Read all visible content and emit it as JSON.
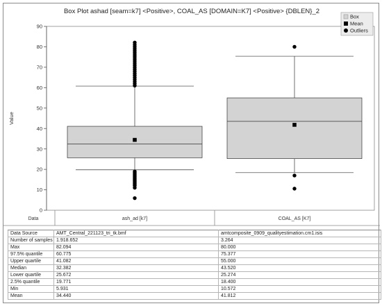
{
  "chart_data": {
    "type": "box",
    "title": "Box Plot  ashad [seam=k7] <Positive>, COAL_AS [DOMAIN=K7] <Positive> {DBLEN}_2",
    "ylabel": "Value",
    "ylim": [
      0,
      90
    ],
    "yticks": [
      0,
      10,
      20,
      30,
      40,
      50,
      60,
      70,
      80,
      90
    ],
    "grid": false,
    "legend_position": "top-right",
    "legend": [
      {
        "label": "Box",
        "symbol": "box"
      },
      {
        "label": "Mean",
        "symbol": "square"
      },
      {
        "label": "Outliers",
        "symbol": "circle"
      }
    ],
    "data_column_label": "Data",
    "colors": {
      "box_fill": "#d3d3d3",
      "line": "#333333",
      "marker": "#000000"
    },
    "series": [
      {
        "name": "ash_ad [k7]",
        "whisker_low": 19.771,
        "q1": 25.672,
        "median": 32.382,
        "mean": 34.44,
        "q3": 41.082,
        "whisker_high": 60.775,
        "min": 5.931,
        "max": 82.094,
        "outliers_high": [
          61,
          62,
          63,
          64,
          65,
          66,
          67,
          68,
          69,
          70,
          71,
          72,
          73,
          74,
          75,
          76,
          77,
          78,
          79,
          80,
          81,
          82.094
        ],
        "outliers_low": [
          19,
          18.5,
          18,
          17.5,
          17,
          16.5,
          16,
          15.5,
          15,
          14.5,
          14,
          13.5,
          13,
          12.5,
          12,
          11,
          5.931
        ]
      },
      {
        "name": "COAL_AS [K7]",
        "whisker_low": 18.4,
        "q1": 25.274,
        "median": 43.52,
        "mean": 41.812,
        "q3": 55.0,
        "whisker_high": 75.377,
        "min": 10.572,
        "max": 80.0,
        "outliers_high": [
          80.0
        ],
        "outliers_low": [
          17.0,
          10.572
        ]
      }
    ]
  },
  "table": {
    "rows": [
      {
        "label": "Data Source",
        "v1": "AMT_Central_221123_tri_tk.bmf",
        "v2": "amtcomposite_0909_qualityestimation.cm1.isis"
      },
      {
        "label": "Number of samples",
        "v1": "1.918.652",
        "v2": "3.264"
      },
      {
        "label": "Max",
        "v1": "82.094",
        "v2": "80.000"
      },
      {
        "label": "97.5% quantile",
        "v1": "60.775",
        "v2": "75.377"
      },
      {
        "label": "Upper quartile",
        "v1": "41.082",
        "v2": "55.000"
      },
      {
        "label": "Median",
        "v1": "32.382",
        "v2": "43.520"
      },
      {
        "label": "Lower quartile",
        "v1": "25.672",
        "v2": "25.274"
      },
      {
        "label": "2.5% quantile",
        "v1": "19.771",
        "v2": "18.400"
      },
      {
        "label": "Min",
        "v1": "5.931",
        "v2": "10.572"
      },
      {
        "label": "Mean",
        "v1": "34.440",
        "v2": "41.812"
      }
    ]
  }
}
